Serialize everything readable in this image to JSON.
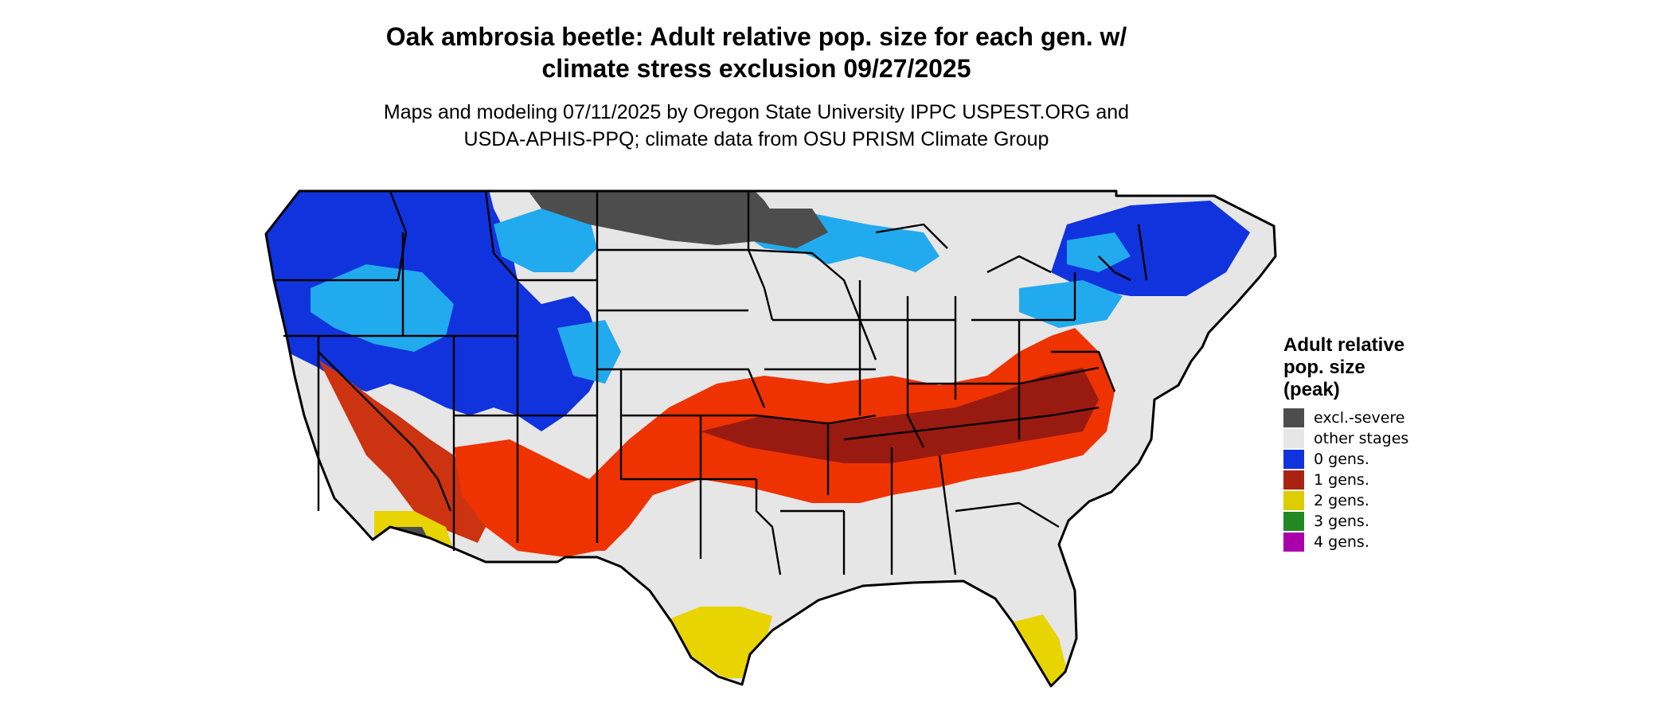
{
  "title": "Oak ambrosia beetle: Adult relative pop. size for each gen. w/\nclimate stress exclusion 09/27/2025",
  "subtitle": "Maps and modeling 07/11/2025 by Oregon State University IPPC USPEST.ORG and\nUSDA-APHIS-PPQ; climate data from OSU PRISM Climate Group",
  "map": {
    "region": "contiguous United States",
    "colors": {
      "excl": "#4d4d4d",
      "other": "#e6e6e6",
      "gen0": "#1133dd",
      "gen0_light": "#22aaee",
      "gen1": "#ee3300",
      "gen1_dark": "#991a10",
      "gen2": "#e8d400",
      "borders": "#000000"
    }
  },
  "legend": {
    "title": "Adult relative\npop. size\n(peak)",
    "items": [
      {
        "label": "excl.-severe",
        "color": "#4d4d4d"
      },
      {
        "label": "other stages",
        "color": "#e6e6e6"
      },
      {
        "label": "0 gens.",
        "color": "#1133dd"
      },
      {
        "label": "1 gens.",
        "color": "#aa2211"
      },
      {
        "label": "2 gens.",
        "color": "#ddcc00"
      },
      {
        "label": "3 gens.",
        "color": "#228822"
      },
      {
        "label": "4 gens.",
        "color": "#aa00aa"
      }
    ]
  }
}
